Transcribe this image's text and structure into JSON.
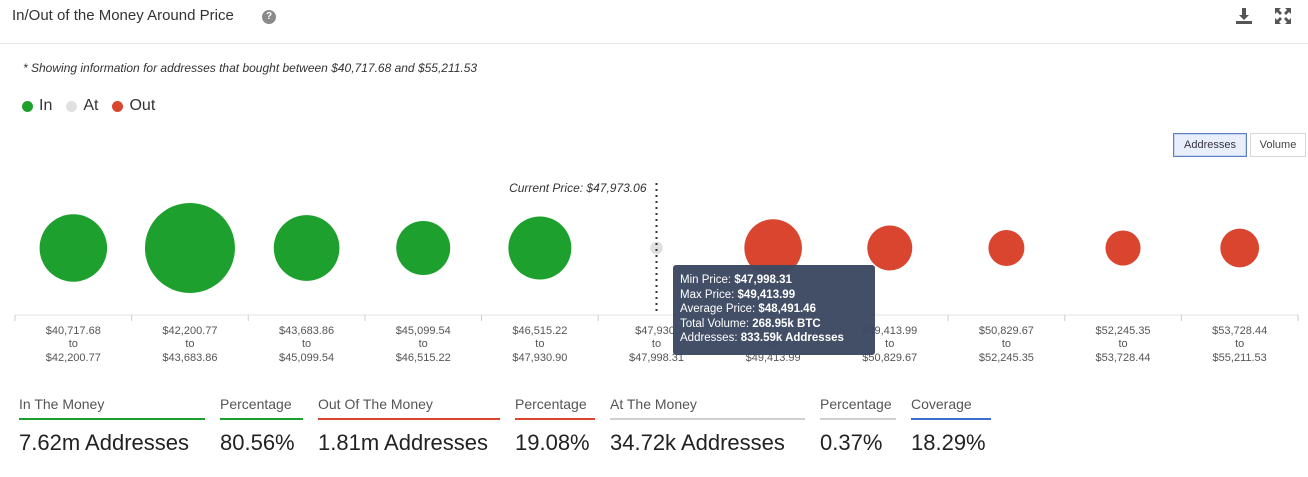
{
  "header": {
    "title": "In/Out of the Money Around Price",
    "help_glyph": "?",
    "icons": [
      "download-icon",
      "expand-icon"
    ]
  },
  "note": "* Showing information for addresses that bought between $40,717.68 and $55,211.53",
  "legend": [
    {
      "label": "In",
      "color": "#1ea02f"
    },
    {
      "label": "At",
      "color": "#e0e0e0"
    },
    {
      "label": "Out",
      "color": "#d9452f"
    }
  ],
  "toggle": {
    "addresses": "Addresses",
    "volume": "Volume",
    "active": "addresses"
  },
  "chart_data": {
    "type": "scatter",
    "current_price_label": "Current Price: $47,973.06",
    "current_price_bucket_index": 5,
    "buckets": [
      {
        "from": "$40,717.68",
        "to": "$42,200.77",
        "status": "in",
        "relative_size": 0.75
      },
      {
        "from": "$42,200.77",
        "to": "$43,683.86",
        "status": "in",
        "relative_size": 1.0
      },
      {
        "from": "$43,683.86",
        "to": "$45,099.54",
        "status": "in",
        "relative_size": 0.73
      },
      {
        "from": "$45,099.54",
        "to": "$46,515.22",
        "status": "in",
        "relative_size": 0.6
      },
      {
        "from": "$46,515.22",
        "to": "$47,930.90",
        "status": "in",
        "relative_size": 0.7
      },
      {
        "from": "$47,930.",
        "to": "$47,998.31",
        "status": "at",
        "relative_size": 0.14
      },
      {
        "from": "",
        "to": "$49,413.99",
        "status": "out",
        "relative_size": 0.64
      },
      {
        "from": "$49,413.99",
        "to": "$50,829.67",
        "status": "out",
        "relative_size": 0.5
      },
      {
        "from": "$50,829.67",
        "to": "$52,245.35",
        "status": "out",
        "relative_size": 0.4
      },
      {
        "from": "$52,245.35",
        "to": "$53,728.44",
        "status": "out",
        "relative_size": 0.39
      },
      {
        "from": "$53,728.44",
        "to": "$55,211.53",
        "status": "out",
        "relative_size": 0.43
      }
    ],
    "to_word": "to",
    "colors": {
      "in": "#1ea02f",
      "at": "#e0e0e0",
      "out": "#d9452f"
    },
    "tooltip": {
      "rows": [
        {
          "label": "Min Price:",
          "value": "$47,998.31"
        },
        {
          "label": "Max Price:",
          "value": "$49,413.99"
        },
        {
          "label": "Average Price:",
          "value": "$48,491.46"
        },
        {
          "label": "Total Volume:",
          "value": "268.95k BTC"
        },
        {
          "label": "Addresses:",
          "value": "833.59k Addresses"
        }
      ]
    }
  },
  "stats": [
    {
      "label": "In The Money",
      "value": "7.62m Addresses",
      "color": "#1ea02f"
    },
    {
      "label": "Percentage",
      "value": "80.56%",
      "color": "#1ea02f"
    },
    {
      "label": "Out Of The Money",
      "value": "1.81m Addresses",
      "color": "#d9452f"
    },
    {
      "label": "Percentage",
      "value": "19.08%",
      "color": "#d9452f"
    },
    {
      "label": "At The Money",
      "value": "34.72k Addresses",
      "color": "#d0d0d0"
    },
    {
      "label": "Percentage",
      "value": "0.37%",
      "color": "#d0d0d0"
    },
    {
      "label": "Coverage",
      "value": "18.29%",
      "color": "#3d6fd1"
    }
  ]
}
